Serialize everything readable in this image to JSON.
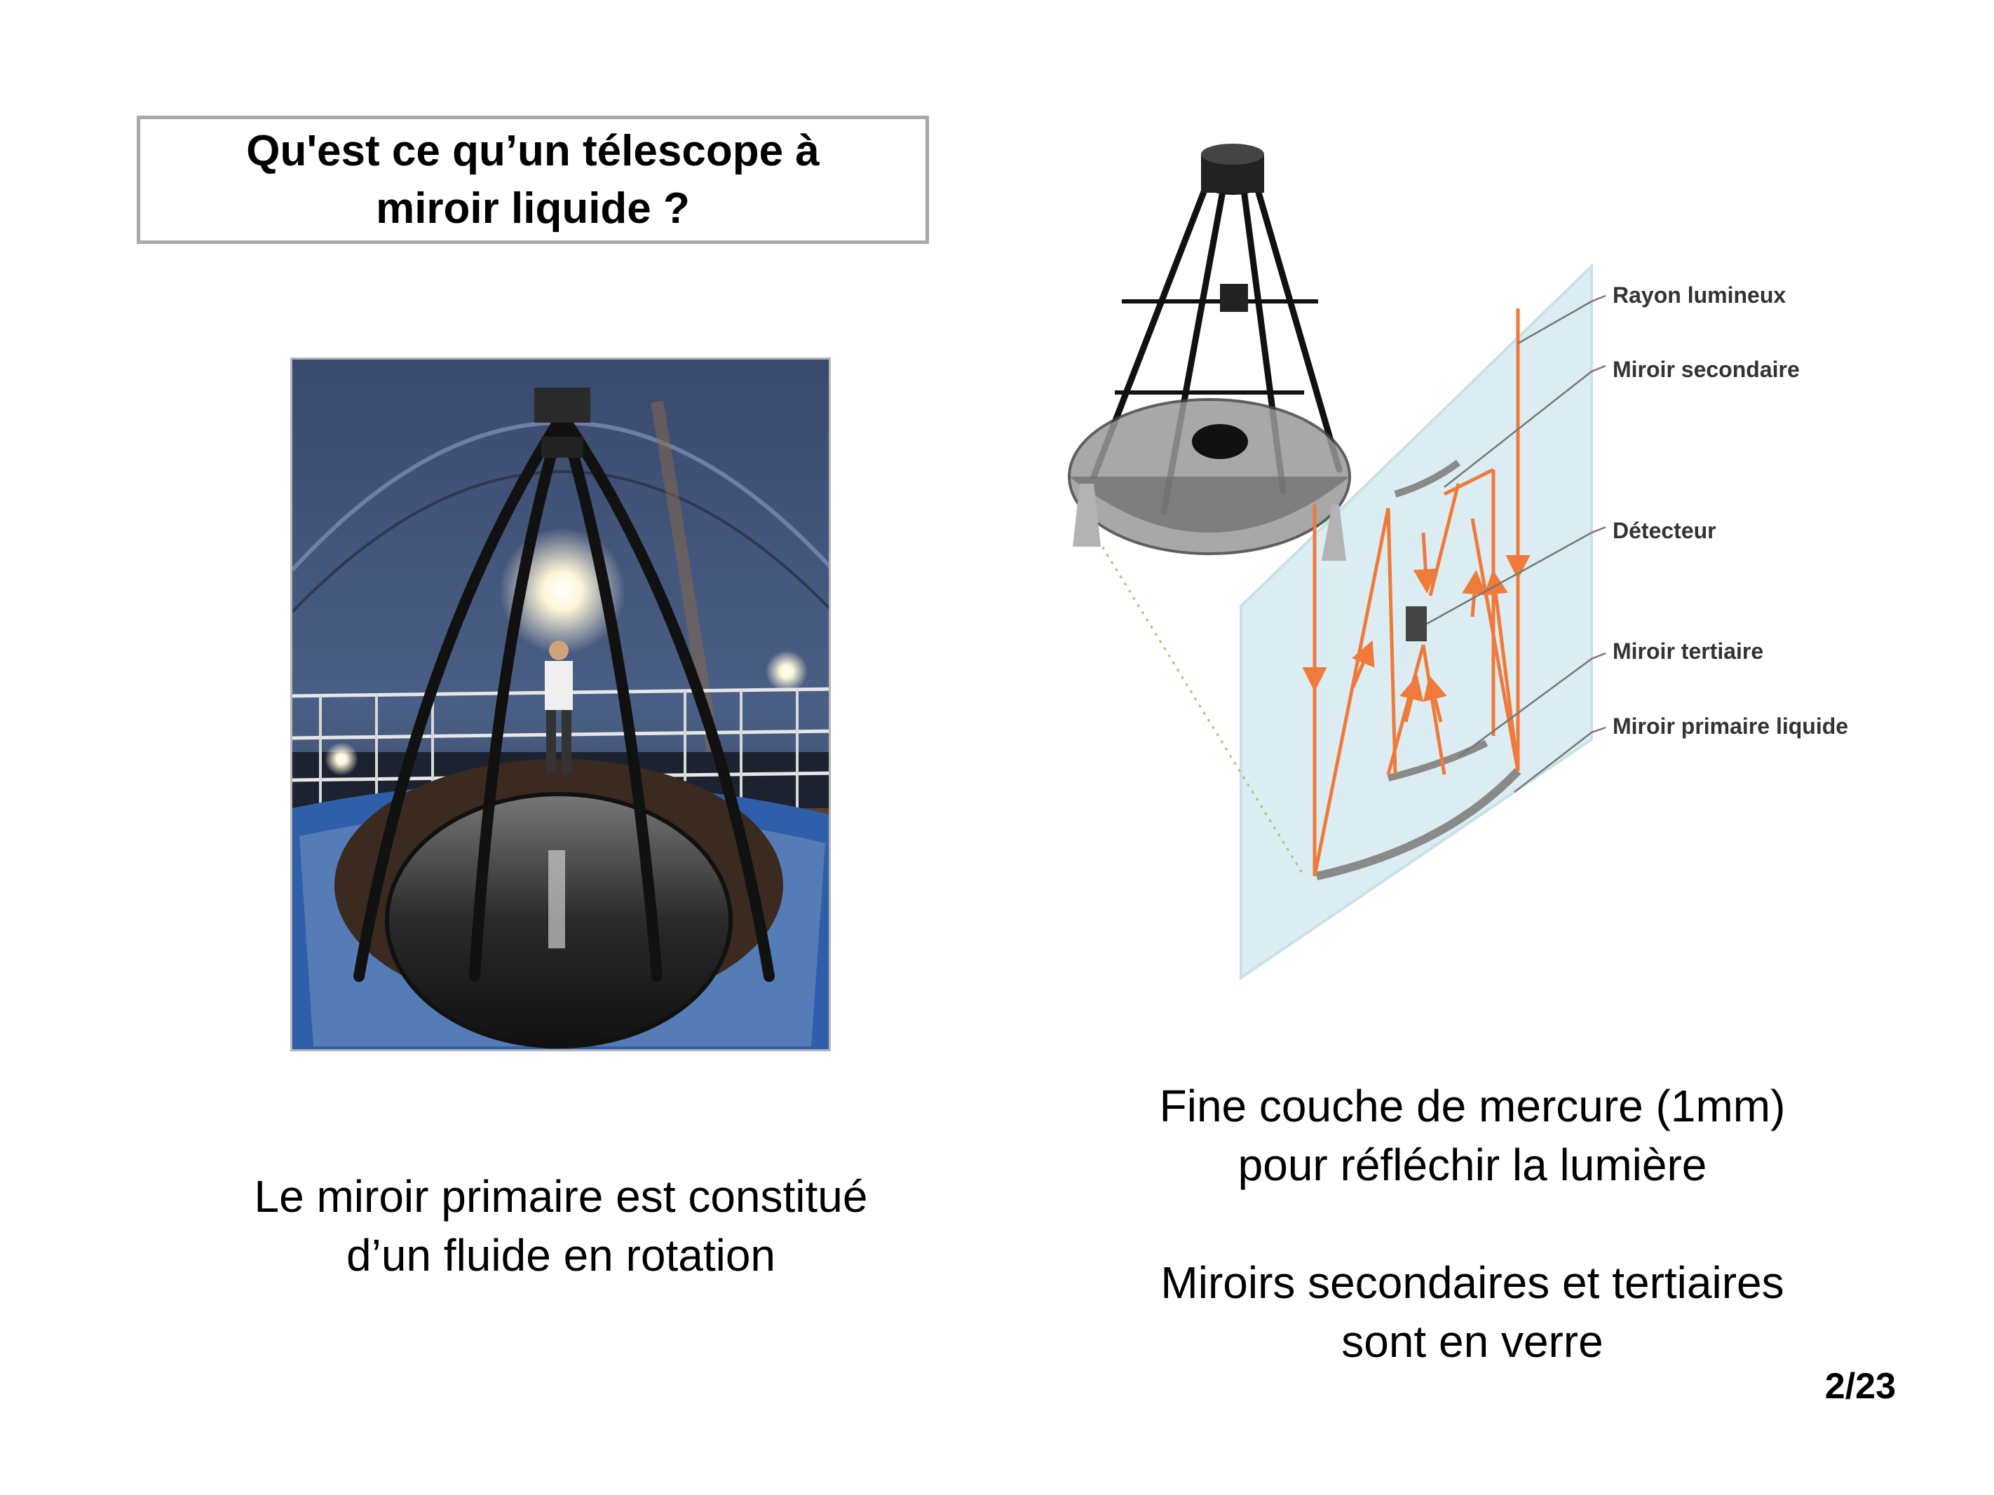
{
  "title": {
    "line1": "Qu'est ce qu’un télescope à",
    "line2": "miroir liquide ?"
  },
  "diagram_labels": {
    "rayon": "Rayon lumineux",
    "secondaire": "Miroir secondaire",
    "detecteur": "Détecteur",
    "tertiaire": "Miroir tertiaire",
    "primaire": "Miroir primaire liquide"
  },
  "captions": {
    "left_line1": "Le miroir primaire est constitué",
    "left_line2": "d’un fluide en rotation",
    "right1_line1": "Fine couche de mercure (1mm)",
    "right1_line2": "pour réfléchir la lumière",
    "right2_line1": "Miroirs secondaires et tertiaires",
    "right2_line2": "sont en verre"
  },
  "page_number": "2/23",
  "colors": {
    "ray": "#f07a3a",
    "glass": "#cfe7ee",
    "mirror": "#8a8a8a",
    "title_border": "#a9a9a9"
  }
}
